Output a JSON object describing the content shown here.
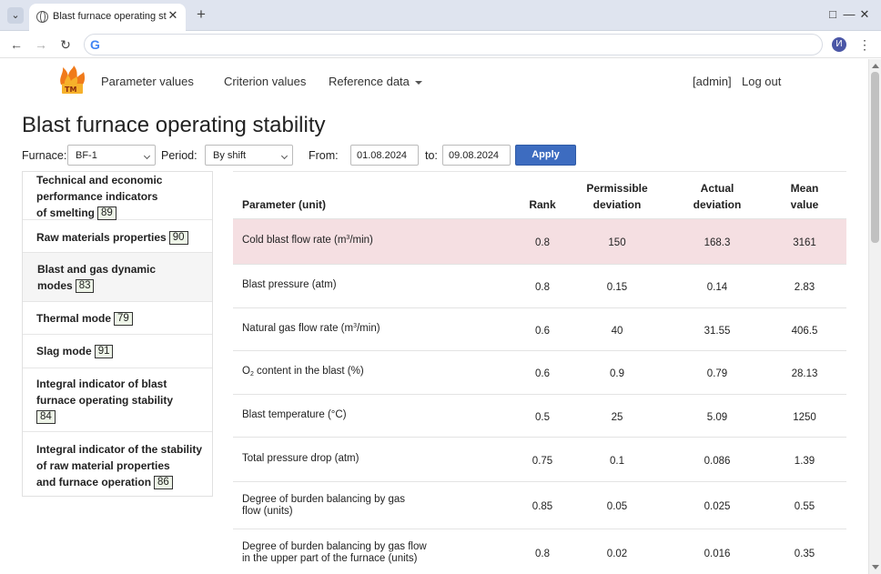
{
  "browser": {
    "tab_title": "Blast furnace operating stability",
    "profile_initial": "И"
  },
  "nav": {
    "parameter_values": "Parameter values",
    "criterion_values": "Criterion values",
    "reference_data": "Reference data",
    "user": "[admin]",
    "logout": "Log out"
  },
  "page": {
    "title": "Blast furnace operating stability"
  },
  "filters": {
    "furnace_label": "Furnace:",
    "furnace_value": "BF-1",
    "period_label": "Period:",
    "period_value": "By shift",
    "from_label": "From:",
    "from_value": "01.08.2024",
    "to_label": "to:",
    "to_value": "09.08.2024",
    "apply_label": "Apply"
  },
  "sidebar": {
    "items": [
      {
        "label": "Technical and economic\nperformance indicators\nof smelting",
        "badge": "89"
      },
      {
        "label": "Raw materials properties",
        "badge": "90"
      },
      {
        "label": "Blast and gas dynamic\nmodes",
        "badge": "83"
      },
      {
        "label": "Thermal mode",
        "badge": "79"
      },
      {
        "label": "Slag mode",
        "badge": "91"
      },
      {
        "label": "Integral indicator of blast\nfurnace operating stability\n",
        "badge": "84"
      },
      {
        "label": "Integral indicator of the stability\nof raw material properties\nand furnace operation",
        "badge": "86"
      }
    ]
  },
  "table": {
    "headers": {
      "parameter": "Parameter (unit)",
      "rank": "Rank",
      "permissible": "Permissible\ndeviation",
      "actual": "Actual\ndeviation",
      "mean": "Mean\nvalue"
    },
    "rows": [
      {
        "pre": "Cold blast flow rate (m",
        "sup": "3",
        "post": "/min)",
        "rank": "0.8",
        "permissible": "150",
        "actual": "168.3",
        "mean": "3161"
      },
      {
        "pre": "Blast pressure (atm)",
        "rank": "0.8",
        "permissible": "0.15",
        "actual": "0.14",
        "mean": "2.83"
      },
      {
        "pre": "Natural gas flow rate (m",
        "sup": "3",
        "post": "/min)",
        "rank": "0.6",
        "permissible": "40",
        "actual": "31.55",
        "mean": "406.5"
      },
      {
        "pre": "O",
        "sub": "2",
        "post": " content in the blast (%)",
        "rank": "0.6",
        "permissible": "0.9",
        "actual": "0.79",
        "mean": "28.13"
      },
      {
        "pre": "Blast temperature (°C)",
        "rank": "0.5",
        "permissible": "25",
        "actual": "5.09",
        "mean": "1250"
      },
      {
        "pre": "Total pressure drop (atm)",
        "rank": "0.75",
        "permissible": "0.1",
        "actual": "0.086",
        "mean": "1.39"
      },
      {
        "line1": "Degree of burden balancing by gas",
        "line2": "flow (units)",
        "rank": "0.85",
        "permissible": "0.05",
        "actual": "0.025",
        "mean": "0.55"
      },
      {
        "line1": "Degree of burden balancing by gas flow",
        "line2": "in the upper part of the furnace (units)",
        "rank": "0.8",
        "permissible": "0.02",
        "actual": "0.016",
        "mean": "0.35"
      }
    ]
  }
}
